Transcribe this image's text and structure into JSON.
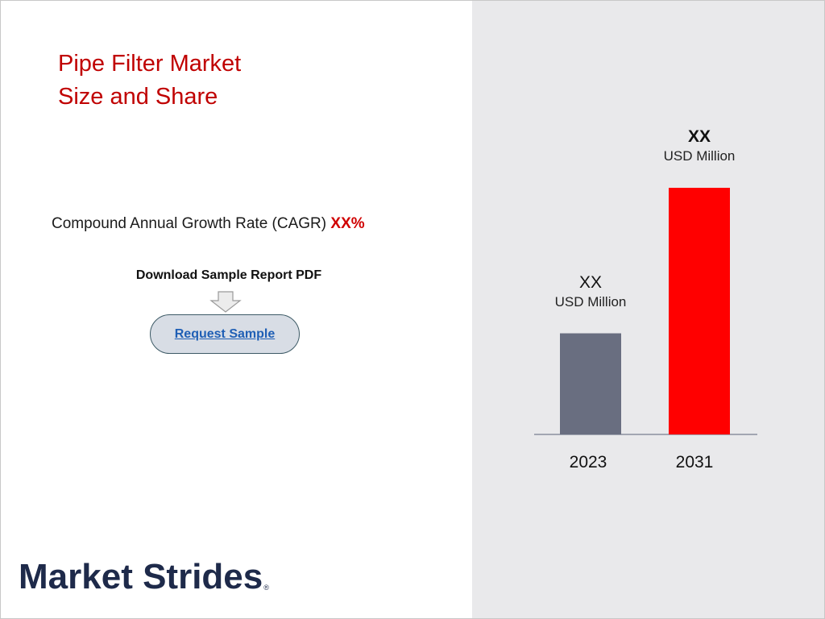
{
  "title_line1": "Pipe Filter Market",
  "title_line2": "Size and Share",
  "cagr": {
    "label": "Compound Annual Growth Rate (CAGR) ",
    "value": "XX%"
  },
  "download_label": "Download Sample Report PDF",
  "request_button": "Request Sample",
  "logo": {
    "text": "Market Strides",
    "mark": "®"
  },
  "colors": {
    "title": "#c00000",
    "cagr_value": "#d00000",
    "bar_2023": "#696e80",
    "bar_2031": "#ff0000",
    "panel_bg": "#e9e9eb",
    "logo": "#1e2a4a"
  },
  "chart_data": {
    "type": "bar",
    "categories": [
      "2023",
      "2031"
    ],
    "values": [
      41,
      100
    ],
    "value_labels": [
      {
        "value": "XX",
        "unit": "USD Million",
        "bold": false
      },
      {
        "value": "XX",
        "unit": "USD Million",
        "bold": true
      }
    ],
    "ylim": [
      0,
      100
    ],
    "grid": false,
    "legend": "none",
    "title": "",
    "xlabel": "",
    "ylabel": ""
  }
}
